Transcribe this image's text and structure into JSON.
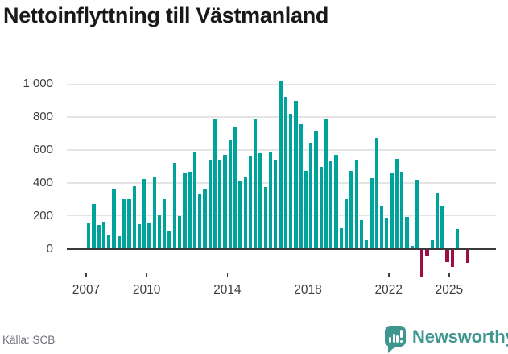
{
  "header": {
    "title_note": "see chart_data.title"
  },
  "footer": {
    "source": "Källa: SCB",
    "brand": "Newsworthy"
  },
  "colors": {
    "positive_bar": "#00a39b",
    "negative_bar": "#9f0d46",
    "gridline": "#e4e4e4",
    "axis": "#3a3a3a",
    "text_dark": "#191919",
    "text_axis": "#3d3d3d",
    "text_muted": "#6e7178",
    "brand_teal": "#3e968f"
  },
  "chart_data": {
    "type": "bar",
    "title": "Nettoinflyttning till Västmanland",
    "period": "quarterly",
    "x_start": "2007 Q1",
    "x_end": "2025 Q4",
    "grid": "horizontal",
    "legend": "none",
    "ylim": [
      -200,
      1100
    ],
    "y_tick_values": [
      0,
      200,
      400,
      600,
      800,
      1000
    ],
    "y_tick_labels": [
      "0",
      "200",
      "400",
      "600",
      "800",
      "1 000"
    ],
    "x_tick_years": [
      2007,
      2010,
      2014,
      2018,
      2022,
      2025
    ],
    "x_tick_labels": [
      "2007",
      "2010",
      "2014",
      "2018",
      "2022",
      "2025"
    ],
    "series": [
      {
        "name": "Nettoinflyttning",
        "by_year": [
          {
            "year": 2007,
            "values": [
              155,
              270,
              145,
              165
            ]
          },
          {
            "year": 2008,
            "values": [
              80,
              360,
              75,
              300
            ]
          },
          {
            "year": 2009,
            "values": [
              300,
              380,
              150,
              425
            ]
          },
          {
            "year": 2010,
            "values": [
              160,
              435,
              205,
              300
            ]
          },
          {
            "year": 2011,
            "values": [
              110,
              520,
              200,
              460
            ]
          },
          {
            "year": 2012,
            "values": [
              470,
              590,
              330,
              365
            ]
          },
          {
            "year": 2013,
            "values": [
              540,
              790,
              535,
              570
            ]
          },
          {
            "year": 2014,
            "values": [
              660,
              735,
              410,
              435
            ]
          },
          {
            "year": 2015,
            "values": [
              565,
              785,
              580,
              375
            ]
          },
          {
            "year": 2016,
            "values": [
              585,
              535,
              1015,
              925
            ]
          },
          {
            "year": 2017,
            "values": [
              820,
              900,
              755,
              475
            ]
          },
          {
            "year": 2018,
            "values": [
              645,
              715,
              495,
              785
            ]
          },
          {
            "year": 2019,
            "values": [
              530,
              570,
              125,
              300
            ]
          },
          {
            "year": 2020,
            "values": [
              475,
              535,
              175,
              50
            ]
          },
          {
            "year": 2021,
            "values": [
              430,
              675,
              255,
              190
            ]
          },
          {
            "year": 2022,
            "values": [
              460,
              545,
              470,
              195
            ]
          },
          {
            "year": 2023,
            "values": [
              15,
              420,
              -170,
              -40
            ]
          },
          {
            "year": 2024,
            "values": [
              50,
              340,
              260,
              -80
            ]
          },
          {
            "year": 2025,
            "values": [
              -110,
              120,
              0,
              -85
            ]
          }
        ]
      }
    ]
  }
}
